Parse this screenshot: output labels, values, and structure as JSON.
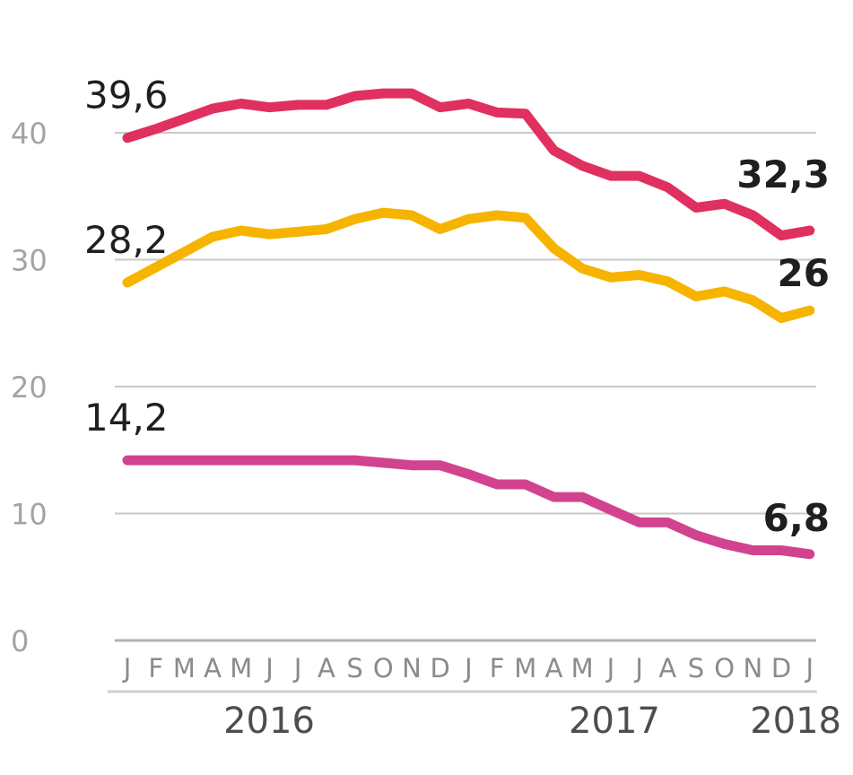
{
  "chart_data": {
    "type": "line",
    "ylim": [
      0,
      44
    ],
    "y_ticks": [
      0,
      10,
      20,
      30,
      40
    ],
    "month_labels": [
      "J",
      "F",
      "M",
      "A",
      "M",
      "J",
      "J",
      "A",
      "S",
      "O",
      "N",
      "D",
      "J",
      "F",
      "M",
      "A",
      "M",
      "J",
      "J",
      "A",
      "S",
      "O",
      "N",
      "D",
      "J"
    ],
    "years": [
      {
        "label": "2016"
      },
      {
        "label": "2017"
      },
      {
        "label": "2018"
      }
    ],
    "series": [
      {
        "color": "#e0305f",
        "values": [
          39.6,
          40.3,
          41.1,
          41.9,
          42.3,
          42.0,
          42.2,
          42.2,
          42.9,
          43.1,
          43.1,
          42.0,
          42.3,
          41.6,
          41.5,
          38.6,
          37.4,
          36.6,
          36.6,
          35.7,
          34.1,
          34.4,
          33.5,
          31.9,
          32.3
        ],
        "start_label": "39,6",
        "end_label": "32,3"
      },
      {
        "color": "#f6b400",
        "values": [
          28.2,
          29.4,
          30.6,
          31.8,
          32.3,
          32.0,
          32.2,
          32.4,
          33.2,
          33.7,
          33.5,
          32.4,
          33.2,
          33.5,
          33.3,
          30.9,
          29.3,
          28.6,
          28.8,
          28.3,
          27.1,
          27.5,
          26.8,
          25.4,
          26.0
        ],
        "start_label": "28,2",
        "end_label": "26"
      },
      {
        "color": "#d2438f",
        "values": [
          14.2,
          14.2,
          14.2,
          14.2,
          14.2,
          14.2,
          14.2,
          14.2,
          14.2,
          14.0,
          13.8,
          13.8,
          13.1,
          12.3,
          12.3,
          11.3,
          11.3,
          10.3,
          9.3,
          9.3,
          8.3,
          7.6,
          7.1,
          7.1,
          6.8
        ],
        "start_label": "14,2",
        "end_label": "6,8"
      }
    ]
  }
}
